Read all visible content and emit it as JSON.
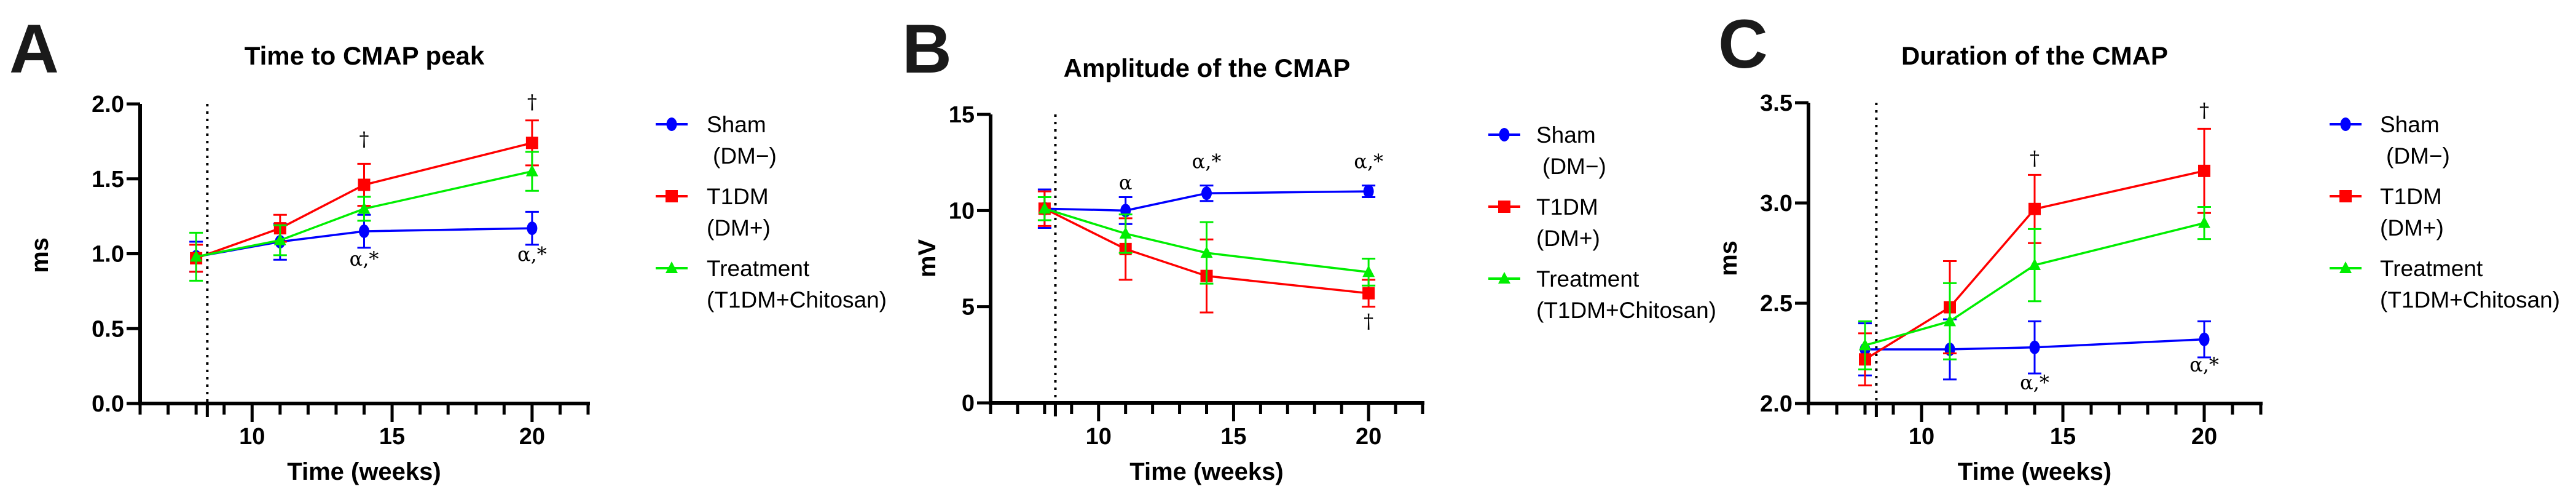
{
  "legend": [
    {
      "name": "Sham",
      "sub": "(DM−)",
      "color": "#0000ff",
      "marker": "circle"
    },
    {
      "name": "T1DM",
      "sub": "(DM+)",
      "color": "#ff0000",
      "marker": "square"
    },
    {
      "name": "Treatment",
      "sub": "(T1DM+Chitosan)",
      "color": "#00ee00",
      "marker": "triangle"
    }
  ],
  "chart_data": [
    {
      "panel": "A",
      "type": "line",
      "title": "Time to CMAP peak",
      "xlabel": "Time (weeks)",
      "ylabel": "ms",
      "xlim": [
        6,
        22
      ],
      "ylim": [
        0,
        2.0
      ],
      "xticks": [
        10,
        15,
        20
      ],
      "yticks": [
        "0.0",
        "0.5",
        "1.0",
        "1.5",
        "2.0"
      ],
      "ytick_values": [
        0,
        0.5,
        1.0,
        1.5,
        2.0
      ],
      "vline_x": 8.4,
      "x": [
        8,
        11,
        14,
        20
      ],
      "series": [
        {
          "name": "Sham (DM−)",
          "values": [
            0.98,
            1.08,
            1.15,
            1.17
          ],
          "error": [
            0.1,
            0.12,
            0.11,
            0.11
          ]
        },
        {
          "name": "T1DM (DM+)",
          "values": [
            0.97,
            1.17,
            1.46,
            1.74
          ],
          "error": [
            0.09,
            0.09,
            0.14,
            0.15
          ]
        },
        {
          "name": "Treatment (T1DM+Chitosan)",
          "values": [
            0.98,
            1.09,
            1.3,
            1.55
          ],
          "error": [
            0.16,
            0.1,
            0.08,
            0.13
          ]
        }
      ],
      "annotations": [
        {
          "text": "†",
          "x": 14,
          "y": 1.72
        },
        {
          "text": "†",
          "x": 20,
          "y": 1.97
        },
        {
          "text": "α,*",
          "x": 14,
          "y": 0.92
        },
        {
          "text": "α,*",
          "x": 20,
          "y": 0.95
        }
      ]
    },
    {
      "panel": "B",
      "type": "line",
      "title": "Amplitude of the CMAP",
      "xlabel": "Time (weeks)",
      "ylabel": "mV",
      "xlim": [
        6,
        22
      ],
      "ylim": [
        0,
        15
      ],
      "xticks": [
        10,
        15,
        20
      ],
      "yticks": [
        "0",
        "5",
        "10",
        "15"
      ],
      "ytick_values": [
        0,
        5,
        10,
        15
      ],
      "vline_x": 8.4,
      "x": [
        8,
        11,
        14,
        20
      ],
      "series": [
        {
          "name": "Sham (DM−)",
          "values": [
            10.1,
            10.0,
            10.9,
            11.0
          ],
          "error": [
            1.0,
            0.7,
            0.4,
            0.3
          ]
        },
        {
          "name": "T1DM (DM+)",
          "values": [
            10.1,
            8.0,
            6.6,
            5.7
          ],
          "error": [
            0.9,
            1.6,
            1.9,
            0.7
          ]
        },
        {
          "name": "Treatment (T1DM+Chitosan)",
          "values": [
            10.1,
            8.8,
            7.8,
            6.8
          ],
          "error": [
            0.6,
            1.0,
            1.6,
            0.7
          ]
        }
      ],
      "annotations": [
        {
          "text": "α",
          "x": 11,
          "y": 11.1
        },
        {
          "text": "α,*",
          "x": 14,
          "y": 12.2
        },
        {
          "text": "α,*",
          "x": 20,
          "y": 12.2
        },
        {
          "text": "†",
          "x": 20,
          "y": 3.9
        }
      ]
    },
    {
      "panel": "C",
      "type": "line",
      "title": "Duration of the CMAP",
      "xlabel": "Time (weeks)",
      "ylabel": "ms",
      "xlim": [
        6,
        22
      ],
      "ylim": [
        2.0,
        3.5
      ],
      "xticks": [
        10,
        15,
        20
      ],
      "yticks": [
        "2.0",
        "2.5",
        "3.0",
        "3.5"
      ],
      "ytick_values": [
        2.0,
        2.5,
        3.0,
        3.5
      ],
      "vline_x": 8.4,
      "x": [
        8,
        11,
        14,
        20
      ],
      "series": [
        {
          "name": "Sham (DM−)",
          "values": [
            2.27,
            2.27,
            2.28,
            2.32
          ],
          "error": [
            0.13,
            0.15,
            0.13,
            0.09
          ]
        },
        {
          "name": "T1DM (DM+)",
          "values": [
            2.22,
            2.48,
            2.97,
            3.16
          ],
          "error": [
            0.13,
            0.23,
            0.17,
            0.21
          ]
        },
        {
          "name": "Treatment (T1DM+Chitosan)",
          "values": [
            2.29,
            2.41,
            2.69,
            2.9
          ],
          "error": [
            0.12,
            0.19,
            0.18,
            0.08
          ]
        }
      ],
      "annotations": [
        {
          "text": "†",
          "x": 14,
          "y": 3.19
        },
        {
          "text": "†",
          "x": 20,
          "y": 3.43
        },
        {
          "text": "α,*",
          "x": 14,
          "y": 2.07
        },
        {
          "text": "α,*",
          "x": 20,
          "y": 2.16
        }
      ]
    }
  ]
}
